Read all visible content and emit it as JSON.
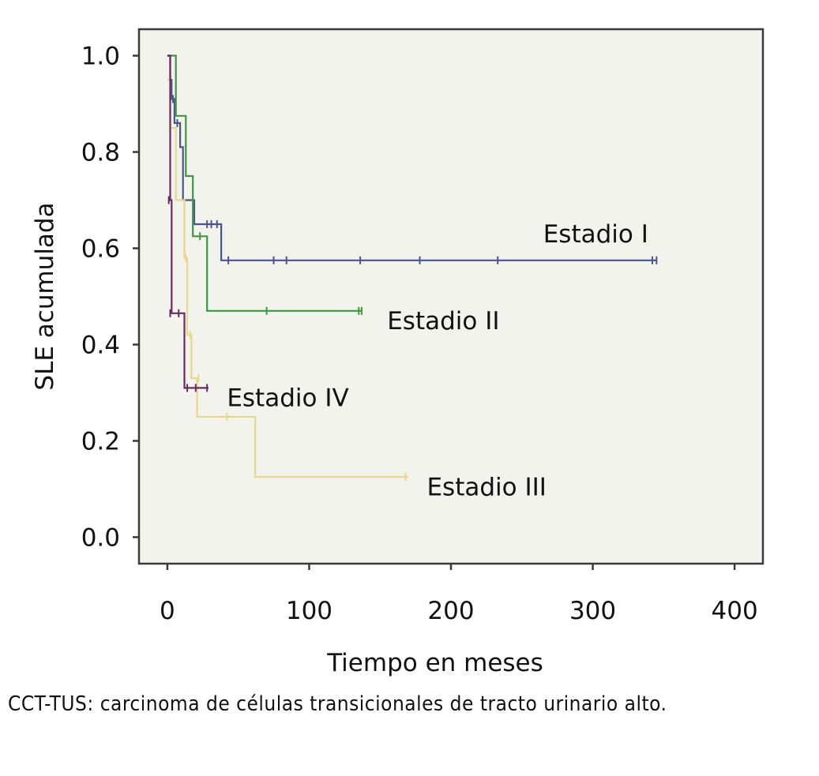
{
  "chart_data": {
    "type": "line",
    "step": true,
    "title": "",
    "xlabel": "Tiempo en meses",
    "ylabel": "SLE acumulada",
    "xlim": [
      -20,
      420
    ],
    "ylim": [
      -0.055,
      1.055
    ],
    "xticks": [
      0,
      100,
      200,
      300,
      400
    ],
    "yticks": [
      0.0,
      0.2,
      0.4,
      0.6,
      0.8,
      1.0
    ],
    "xtick_labels": [
      "0",
      "100",
      "200",
      "300",
      "400"
    ],
    "ytick_labels": [
      "0.0",
      "0.2",
      "0.4",
      "0.6",
      "0.8",
      "1.0"
    ],
    "grid": false,
    "background": "#f3f3ee",
    "series": [
      {
        "name": "Estadio I",
        "color": "#4a5590",
        "points": [
          [
            0,
            1.0
          ],
          [
            2,
            0.95
          ],
          [
            3,
            0.91
          ],
          [
            5,
            0.86
          ],
          [
            7,
            0.86
          ],
          [
            9,
            0.81
          ],
          [
            11,
            0.7
          ],
          [
            18,
            0.7
          ],
          [
            19,
            0.65
          ],
          [
            28,
            0.65
          ],
          [
            37,
            0.65
          ],
          [
            38,
            0.575
          ],
          [
            345,
            0.575
          ]
        ],
        "censored": [
          [
            2,
            0.95
          ],
          [
            4,
            0.91
          ],
          [
            7,
            0.86
          ],
          [
            28,
            0.65
          ],
          [
            31,
            0.65
          ],
          [
            35,
            0.65
          ],
          [
            43,
            0.575
          ],
          [
            75,
            0.575
          ],
          [
            84,
            0.575
          ],
          [
            136,
            0.575
          ],
          [
            178,
            0.575
          ],
          [
            233,
            0.575
          ],
          [
            342,
            0.575
          ],
          [
            345,
            0.575
          ]
        ]
      },
      {
        "name": "Estadio II",
        "color": "#3f9640",
        "points": [
          [
            0,
            1.0
          ],
          [
            5,
            1.0
          ],
          [
            6,
            0.875
          ],
          [
            12,
            0.875
          ],
          [
            13,
            0.75
          ],
          [
            17,
            0.75
          ],
          [
            18,
            0.625
          ],
          [
            27,
            0.625
          ],
          [
            28,
            0.47
          ],
          [
            137,
            0.47
          ]
        ],
        "censored": [
          [
            23,
            0.625
          ],
          [
            70,
            0.47
          ],
          [
            135,
            0.47
          ],
          [
            137,
            0.47
          ]
        ]
      },
      {
        "name": "Estadio III",
        "color": "#e9d78c",
        "points": [
          [
            0,
            0.95
          ],
          [
            2,
            0.85
          ],
          [
            6,
            0.7
          ],
          [
            12,
            0.58
          ],
          [
            14,
            0.42
          ],
          [
            17,
            0.33
          ],
          [
            21,
            0.25
          ],
          [
            61,
            0.25
          ],
          [
            62,
            0.125
          ],
          [
            170,
            0.125
          ]
        ],
        "censored": [
          [
            13,
            0.58
          ],
          [
            16,
            0.42
          ],
          [
            22,
            0.33
          ],
          [
            42,
            0.25
          ],
          [
            168,
            0.125
          ]
        ]
      },
      {
        "name": "Estadio IV",
        "color": "#6a2a62",
        "points": [
          [
            0,
            1.0
          ],
          [
            2,
            0.7
          ],
          [
            3,
            0.465
          ],
          [
            11,
            0.465
          ],
          [
            12,
            0.31
          ],
          [
            29,
            0.31
          ]
        ],
        "censored": [
          [
            1,
            0.7
          ],
          [
            2,
            0.465
          ],
          [
            8,
            0.465
          ],
          [
            14,
            0.31
          ],
          [
            20,
            0.31
          ],
          [
            28,
            0.31
          ]
        ]
      }
    ],
    "annotations": [
      {
        "text": "Estadio I",
        "x": 265,
        "y": 0.63
      },
      {
        "text": "Estadio II",
        "x": 155,
        "y": 0.45
      },
      {
        "text": "Estadio IV",
        "x": 42,
        "y": 0.29
      },
      {
        "text": "Estadio III",
        "x": 183,
        "y": 0.105
      }
    ]
  },
  "caption": "CCT-TUS: carcinoma de células transicionales de tracto urinario alto."
}
